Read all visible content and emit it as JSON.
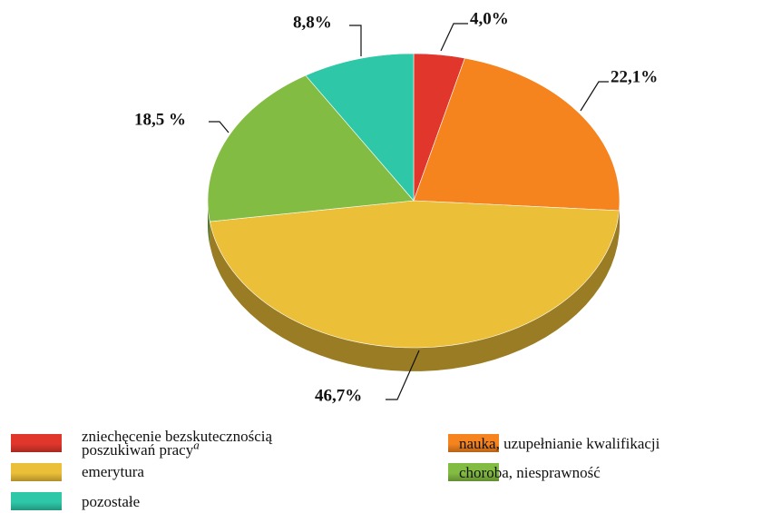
{
  "chart_data": {
    "type": "pie",
    "categories": [
      "zniechęcenie bezskutecznością poszukiwań pracy",
      "nauka, uzupełnianie kwalifikacji",
      "emerytura",
      "choroba, niesprawność",
      "pozostałe"
    ],
    "name_superscripts": [
      "a",
      null,
      null,
      null,
      null
    ],
    "values": [
      4.0,
      22.1,
      46.7,
      18.5,
      8.8
    ],
    "value_labels": [
      "4,0%",
      "22,1%",
      "46,7%",
      "18,5 %",
      "8,8%"
    ],
    "colors": [
      "#e0362c",
      "#f5831e",
      "#ebbf38",
      "#83bc42",
      "#2ec8a9"
    ]
  }
}
